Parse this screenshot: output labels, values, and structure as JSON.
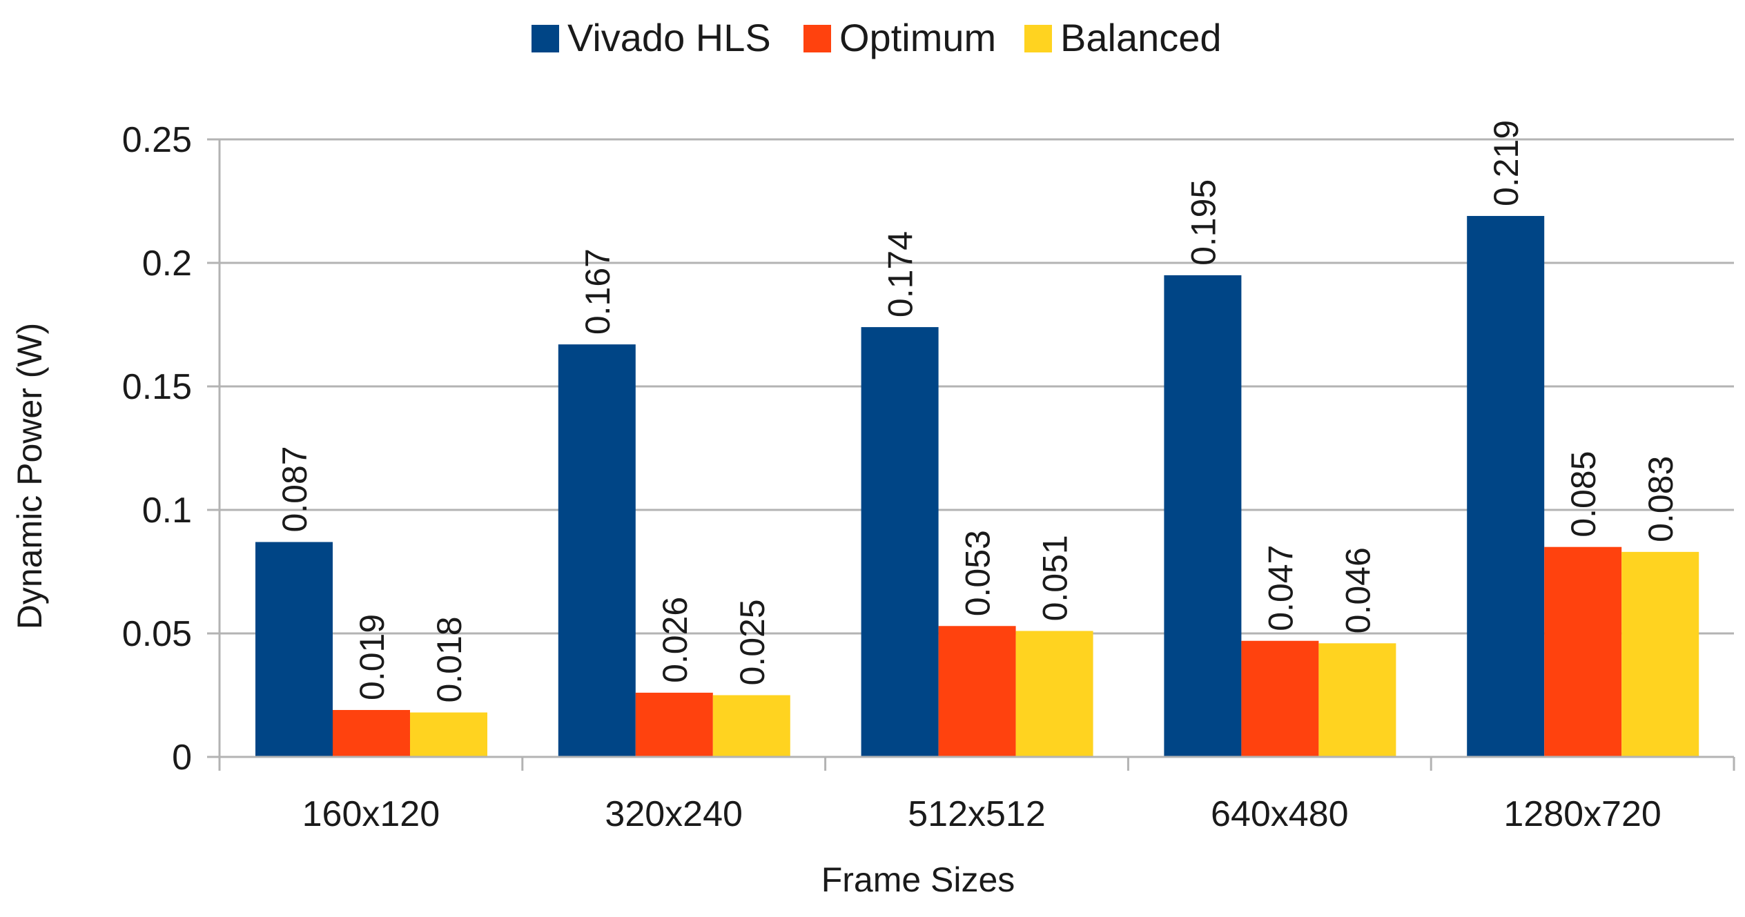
{
  "chart_data": {
    "type": "bar",
    "title": "",
    "xlabel": "Frame Sizes",
    "ylabel": "Dynamic Power (W)",
    "ylim": [
      0,
      0.25
    ],
    "yticks": [
      0,
      0.05,
      0.1,
      0.15,
      0.2,
      0.25
    ],
    "ytick_labels": [
      "0",
      "0.05",
      "0.1",
      "0.15",
      "0.2",
      "0.25"
    ],
    "grid": true,
    "legend_position": "top-center",
    "categories": [
      "160x120",
      "320x240",
      "512x512",
      "640x480",
      "1280x720"
    ],
    "series": [
      {
        "name": "Vivado HLS",
        "color": "#004586",
        "values": [
          0.087,
          0.167,
          0.174,
          0.195,
          0.219
        ],
        "labels": [
          "0.087",
          "0.167",
          "0.174",
          "0.195",
          "0.219"
        ]
      },
      {
        "name": "Optimum",
        "color": "#ff420e",
        "values": [
          0.019,
          0.026,
          0.053,
          0.047,
          0.085
        ],
        "labels": [
          "0.019",
          "0.026",
          "0.053",
          "0.047",
          "0.085"
        ]
      },
      {
        "name": "Balanced",
        "color": "#ffd320",
        "values": [
          0.018,
          0.025,
          0.051,
          0.046,
          0.083
        ],
        "labels": [
          "0.018",
          "0.025",
          "0.051",
          "0.046",
          "0.083"
        ]
      }
    ]
  }
}
